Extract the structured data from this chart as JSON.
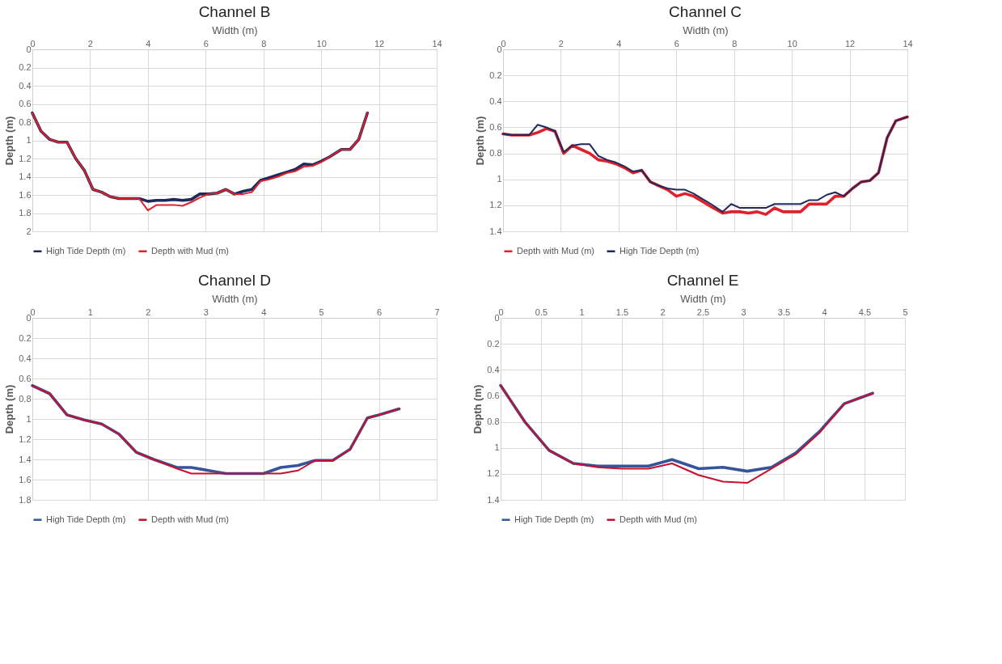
{
  "chart_data": [
    {
      "type": "line",
      "title": "Channel B",
      "xlabel": "Width (m)",
      "ylabel": "Depth (m)",
      "xlim": [
        0,
        14
      ],
      "xticks": [
        0,
        2,
        4,
        6,
        8,
        10,
        12,
        14
      ],
      "ylim": [
        2,
        0
      ],
      "yticks": [
        0,
        0.2,
        0.4,
        0.6,
        0.8,
        1,
        1.2,
        1.4,
        1.6,
        1.8,
        2
      ],
      "grid": true,
      "legend": "bottom",
      "series": [
        {
          "name": "High Tide Depth (m)",
          "color": "#1f2a5c",
          "x": [
            0,
            0.3,
            0.6,
            0.9,
            1.2,
            1.5,
            1.8,
            2.1,
            2.4,
            2.7,
            3.0,
            3.4,
            3.7,
            4.0,
            4.3,
            4.6,
            4.9,
            5.2,
            5.5,
            5.8,
            6.1,
            6.4,
            6.7,
            7.0,
            7.3,
            7.6,
            7.9,
            8.2,
            8.5,
            8.8,
            9.1,
            9.4,
            9.7,
            10.0,
            10.3,
            10.7,
            11.0,
            11.3,
            11.6
          ],
          "values": [
            0.7,
            0.9,
            0.99,
            1.02,
            1.02,
            1.2,
            1.33,
            1.54,
            1.57,
            1.62,
            1.64,
            1.64,
            1.64,
            1.67,
            1.66,
            1.66,
            1.65,
            1.66,
            1.65,
            1.59,
            1.59,
            1.58,
            1.54,
            1.59,
            1.56,
            1.54,
            1.44,
            1.41,
            1.38,
            1.35,
            1.32,
            1.26,
            1.27,
            1.23,
            1.18,
            1.1,
            1.1,
            0.99,
            0.7
          ]
        },
        {
          "name": "Depth with Mud (m)",
          "color": "#e0202a",
          "x": [
            0,
            0.3,
            0.6,
            0.9,
            1.2,
            1.5,
            1.8,
            2.1,
            2.4,
            2.7,
            3.0,
            3.4,
            3.7,
            4.0,
            4.3,
            4.6,
            4.9,
            5.2,
            5.5,
            5.8,
            6.1,
            6.4,
            6.7,
            7.0,
            7.3,
            7.6,
            7.9,
            8.2,
            8.5,
            8.8,
            9.1,
            9.4,
            9.7,
            10.0,
            10.3,
            10.7,
            11.0,
            11.3,
            11.6
          ],
          "values": [
            0.7,
            0.9,
            0.99,
            1.02,
            1.02,
            1.2,
            1.33,
            1.54,
            1.57,
            1.62,
            1.64,
            1.64,
            1.64,
            1.77,
            1.71,
            1.71,
            1.71,
            1.72,
            1.68,
            1.63,
            1.59,
            1.58,
            1.54,
            1.59,
            1.59,
            1.57,
            1.45,
            1.43,
            1.4,
            1.36,
            1.34,
            1.29,
            1.28,
            1.24,
            1.18,
            1.1,
            1.1,
            0.99,
            0.7
          ]
        }
      ]
    },
    {
      "type": "line",
      "title": "Channel C",
      "xlabel": "Width (m)",
      "ylabel": "Depth (m)",
      "xlim": [
        0,
        14
      ],
      "xticks": [
        0,
        2,
        4,
        6,
        8,
        10,
        12,
        14
      ],
      "ylim": [
        1.4,
        0
      ],
      "yticks": [
        0,
        0.2,
        0.4,
        0.6,
        0.8,
        1,
        1.2,
        1.4
      ],
      "grid": true,
      "legend": "bottom",
      "series": [
        {
          "name": "Depth with Mud (m)",
          "color": "#e0202a",
          "x": [
            0,
            0.3,
            0.6,
            0.9,
            1.2,
            1.5,
            1.8,
            2.1,
            2.4,
            2.7,
            3.0,
            3.3,
            3.6,
            3.9,
            4.2,
            4.5,
            4.8,
            5.1,
            5.4,
            5.7,
            6.0,
            6.3,
            6.6,
            6.9,
            7.2,
            7.6,
            7.9,
            8.2,
            8.5,
            8.8,
            9.1,
            9.4,
            9.7,
            10.0,
            10.3,
            10.6,
            10.9,
            11.2,
            11.5,
            11.8,
            12.1,
            12.4,
            12.7,
            13.0,
            13.3,
            13.6,
            14.0
          ],
          "values": [
            0.65,
            0.66,
            0.66,
            0.66,
            0.64,
            0.61,
            0.63,
            0.8,
            0.74,
            0.77,
            0.8,
            0.85,
            0.86,
            0.88,
            0.91,
            0.95,
            0.93,
            1.02,
            1.05,
            1.08,
            1.13,
            1.11,
            1.13,
            1.17,
            1.21,
            1.26,
            1.25,
            1.25,
            1.26,
            1.25,
            1.27,
            1.22,
            1.25,
            1.25,
            1.25,
            1.19,
            1.19,
            1.19,
            1.13,
            1.13,
            1.07,
            1.02,
            1.01,
            0.95,
            0.68,
            0.55,
            0.52
          ]
        },
        {
          "name": "High Tide Depth (m)",
          "color": "#1f2a5c",
          "x": [
            0,
            0.3,
            0.6,
            0.9,
            1.2,
            1.5,
            1.8,
            2.1,
            2.4,
            2.7,
            3.0,
            3.3,
            3.6,
            3.9,
            4.2,
            4.5,
            4.8,
            5.1,
            5.4,
            5.7,
            6.0,
            6.3,
            6.6,
            6.9,
            7.2,
            7.6,
            7.9,
            8.2,
            8.5,
            8.8,
            9.1,
            9.4,
            9.7,
            10.0,
            10.3,
            10.6,
            10.9,
            11.2,
            11.5,
            11.8,
            12.1,
            12.4,
            12.7,
            13.0,
            13.3,
            13.6,
            14.0
          ],
          "values": [
            0.65,
            0.66,
            0.66,
            0.66,
            0.58,
            0.6,
            0.63,
            0.79,
            0.74,
            0.73,
            0.73,
            0.82,
            0.85,
            0.87,
            0.9,
            0.94,
            0.93,
            1.02,
            1.05,
            1.07,
            1.08,
            1.08,
            1.11,
            1.15,
            1.19,
            1.25,
            1.19,
            1.22,
            1.22,
            1.22,
            1.22,
            1.19,
            1.19,
            1.19,
            1.19,
            1.16,
            1.16,
            1.12,
            1.1,
            1.13,
            1.07,
            1.02,
            1.01,
            0.95,
            0.68,
            0.55,
            0.52
          ]
        }
      ]
    },
    {
      "type": "line",
      "title": "Channel D",
      "xlabel": "Width (m)",
      "ylabel": "Depth (m)",
      "xlim": [
        0,
        7
      ],
      "xticks": [
        0,
        1,
        2,
        3,
        4,
        5,
        6,
        7
      ],
      "ylim": [
        1.8,
        0
      ],
      "yticks": [
        0,
        0.2,
        0.4,
        0.6,
        0.8,
        1,
        1.2,
        1.4,
        1.6,
        1.8
      ],
      "grid": true,
      "legend": "bottom",
      "series": [
        {
          "name": "High Tide Depth (m)",
          "color": "#35549a",
          "x": [
            0,
            0.3,
            0.6,
            0.9,
            1.2,
            1.5,
            1.8,
            2.1,
            2.5,
            2.75,
            3.05,
            3.35,
            3.7,
            4.0,
            4.3,
            4.6,
            4.9,
            5.2,
            5.5,
            5.8,
            6.0,
            6.35
          ],
          "values": [
            0.67,
            0.75,
            0.96,
            1.01,
            1.05,
            1.15,
            1.33,
            1.4,
            1.48,
            1.48,
            1.51,
            1.54,
            1.54,
            1.54,
            1.48,
            1.46,
            1.41,
            1.41,
            1.3,
            0.99,
            0.96,
            0.9
          ]
        },
        {
          "name": "Depth with Mud (m)",
          "color": "#c8102e",
          "x": [
            0,
            0.3,
            0.6,
            0.9,
            1.2,
            1.5,
            1.8,
            2.1,
            2.5,
            2.75,
            3.05,
            3.35,
            3.7,
            4.0,
            4.3,
            4.6,
            4.9,
            5.2,
            5.5,
            5.8,
            6.0,
            6.35
          ],
          "values": [
            0.67,
            0.75,
            0.96,
            1.01,
            1.05,
            1.15,
            1.33,
            1.4,
            1.49,
            1.54,
            1.54,
            1.54,
            1.54,
            1.54,
            1.54,
            1.51,
            1.41,
            1.41,
            1.3,
            0.99,
            0.96,
            0.9
          ]
        }
      ]
    },
    {
      "type": "line",
      "title": "Channel E",
      "xlabel": "Width (m)",
      "ylabel": "Depth (m)",
      "xlim": [
        0,
        5
      ],
      "xticks": [
        0,
        0.5,
        1,
        1.5,
        2,
        2.5,
        3,
        3.5,
        4,
        4.5,
        5
      ],
      "ylim": [
        1.4,
        0
      ],
      "yticks": [
        0,
        0.2,
        0.4,
        0.6,
        0.8,
        1,
        1.2,
        1.4
      ],
      "grid": true,
      "legend": "bottom",
      "series": [
        {
          "name": "High Tide Depth (m)",
          "color": "#35549a",
          "x": [
            0,
            0.3,
            0.6,
            0.9,
            1.2,
            1.5,
            1.83,
            2.12,
            2.45,
            2.75,
            3.05,
            3.35,
            3.65,
            3.95,
            4.25,
            4.6
          ],
          "values": [
            0.52,
            0.8,
            1.02,
            1.12,
            1.14,
            1.14,
            1.14,
            1.09,
            1.16,
            1.15,
            1.18,
            1.15,
            1.04,
            0.87,
            0.66,
            0.58
          ]
        },
        {
          "name": "Depth with Mud (m)",
          "color": "#c8102e",
          "x": [
            0,
            0.3,
            0.6,
            0.9,
            1.2,
            1.5,
            1.83,
            2.12,
            2.45,
            2.75,
            3.05,
            3.35,
            3.65,
            3.95,
            4.25,
            4.6
          ],
          "values": [
            0.52,
            0.8,
            1.02,
            1.12,
            1.15,
            1.16,
            1.16,
            1.12,
            1.21,
            1.26,
            1.27,
            1.16,
            1.05,
            0.88,
            0.66,
            0.58
          ]
        }
      ]
    }
  ]
}
